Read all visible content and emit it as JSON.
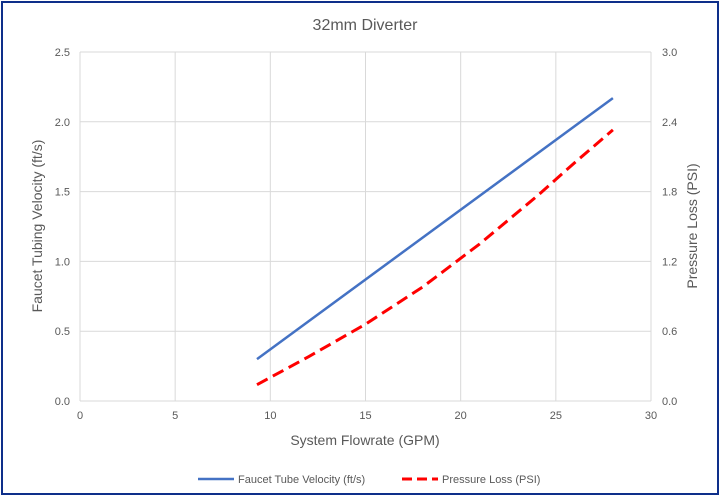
{
  "chart_data": {
    "type": "line",
    "title": "32mm Diverter",
    "xlabel": "System Flowrate (GPM)",
    "ylabel": "Faucet Tubing Velocity (ft/s)",
    "y2label": "Pressure Loss (PSI)",
    "xlim": [
      0,
      30
    ],
    "ylim": [
      0,
      2.5
    ],
    "y2lim": [
      0,
      3.0
    ],
    "x_ticks": [
      "0",
      "5",
      "10",
      "15",
      "20",
      "25",
      "30"
    ],
    "y_ticks": [
      "0.0",
      "0.5",
      "1.0",
      "1.5",
      "2.0",
      "2.5"
    ],
    "y2_ticks": [
      "0.0",
      "0.6",
      "1.2",
      "1.8",
      "2.4",
      "3.0"
    ],
    "grid": true,
    "legend_position": "bottom",
    "series": [
      {
        "name": "Faucet Tube Velocity (ft/s)",
        "axis": "left",
        "color": "#4472c4",
        "style": "solid",
        "x": [
          9.3,
          28
        ],
        "values": [
          0.3,
          2.17
        ]
      },
      {
        "name": "Pressure Loss (PSI)",
        "axis": "right",
        "color": "#ff0000",
        "style": "dashed",
        "x": [
          9.3,
          12,
          15,
          18,
          21,
          24,
          26,
          28
        ],
        "values": [
          0.14,
          0.38,
          0.66,
          0.98,
          1.35,
          1.76,
          2.05,
          2.33
        ]
      }
    ]
  }
}
